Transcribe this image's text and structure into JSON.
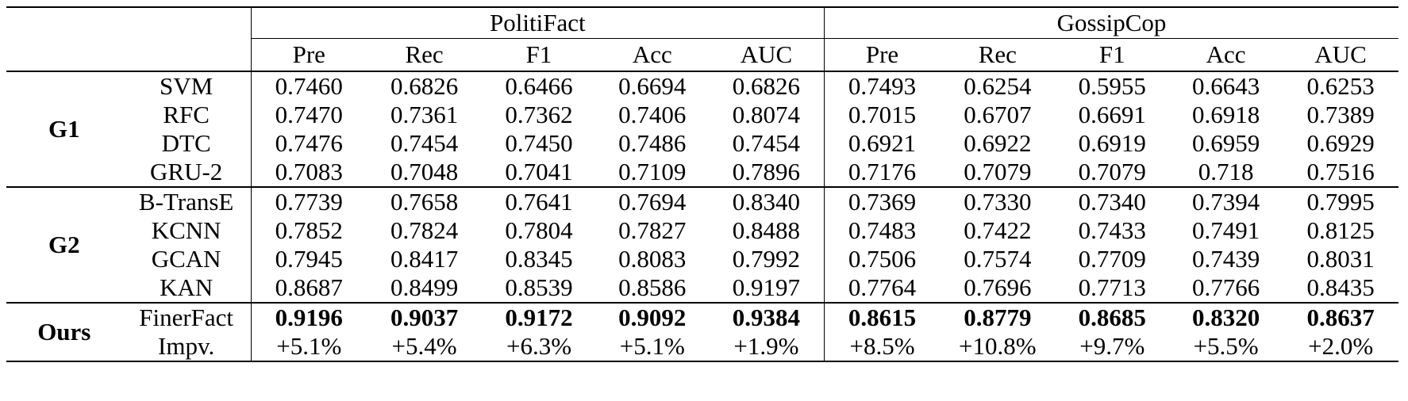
{
  "datasets": [
    "PolitiFact",
    "GossipCop"
  ],
  "metrics": [
    "Pre",
    "Rec",
    "F1",
    "Acc",
    "AUC",
    "Pre",
    "Rec",
    "F1",
    "Acc",
    "AUC"
  ],
  "groups": [
    {
      "label": "G1",
      "rows": [
        {
          "method": "SVM",
          "values": [
            "0.7460",
            "0.6826",
            "0.6466",
            "0.6694",
            "0.6826",
            "0.7493",
            "0.6254",
            "0.5955",
            "0.6643",
            "0.6253"
          ]
        },
        {
          "method": "RFC",
          "values": [
            "0.7470",
            "0.7361",
            "0.7362",
            "0.7406",
            "0.8074",
            "0.7015",
            "0.6707",
            "0.6691",
            "0.6918",
            "0.7389"
          ]
        },
        {
          "method": "DTC",
          "values": [
            "0.7476",
            "0.7454",
            "0.7450",
            "0.7486",
            "0.7454",
            "0.6921",
            "0.6922",
            "0.6919",
            "0.6959",
            "0.6929"
          ]
        },
        {
          "method": "GRU-2",
          "values": [
            "0.7083",
            "0.7048",
            "0.7041",
            "0.7109",
            "0.7896",
            "0.7176",
            "0.7079",
            "0.7079",
            "0.718",
            "0.7516"
          ]
        }
      ]
    },
    {
      "label": "G2",
      "rows": [
        {
          "method": "B-TransE",
          "values": [
            "0.7739",
            "0.7658",
            "0.7641",
            "0.7694",
            "0.8340",
            "0.7369",
            "0.7330",
            "0.7340",
            "0.7394",
            "0.7995"
          ]
        },
        {
          "method": "KCNN",
          "values": [
            "0.7852",
            "0.7824",
            "0.7804",
            "0.7827",
            "0.8488",
            "0.7483",
            "0.7422",
            "0.7433",
            "0.7491",
            "0.8125"
          ]
        },
        {
          "method": "GCAN",
          "values": [
            "0.7945",
            "0.8417",
            "0.8345",
            "0.8083",
            "0.7992",
            "0.7506",
            "0.7574",
            "0.7709",
            "0.7439",
            "0.8031"
          ]
        },
        {
          "method": "KAN",
          "values": [
            "0.8687",
            "0.8499",
            "0.8539",
            "0.8586",
            "0.9197",
            "0.7764",
            "0.7696",
            "0.7713",
            "0.7766",
            "0.8435"
          ]
        }
      ]
    },
    {
      "label": "Ours",
      "rows": [
        {
          "method": "FinerFact",
          "bold": true,
          "values": [
            "0.9196",
            "0.9037",
            "0.9172",
            "0.9092",
            "0.9384",
            "0.8615",
            "0.8779",
            "0.8685",
            "0.8320",
            "0.8637"
          ]
        },
        {
          "method": "Impv.",
          "values": [
            "+5.1%",
            "+5.4%",
            "+6.3%",
            "+5.1%",
            "+1.9%",
            "+8.5%",
            "+10.8%",
            "+9.7%",
            "+5.5%",
            "+2.0%"
          ]
        }
      ]
    }
  ]
}
